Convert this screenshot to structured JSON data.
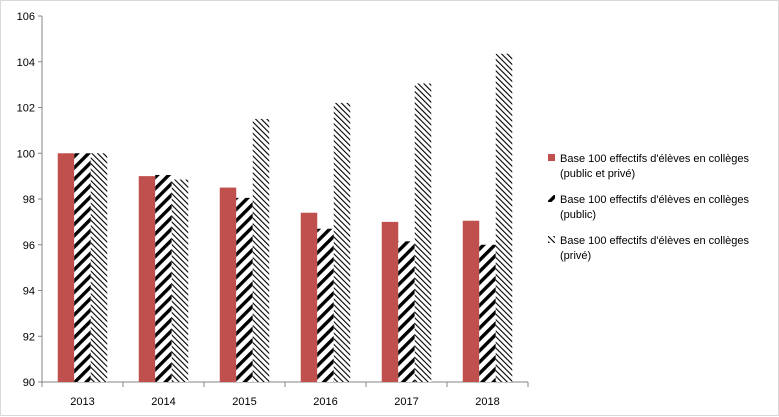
{
  "chart_data": {
    "type": "bar",
    "categories": [
      "2013",
      "2014",
      "2015",
      "2016",
      "2017",
      "2018"
    ],
    "series": [
      {
        "name": "Base 100 effectifs d'élèves en collèges (public et privé)",
        "name_lines": [
          "Base 100 effectifs d'élèves en collèges",
          "(public et privé)"
        ],
        "values": [
          100,
          99.0,
          98.5,
          97.4,
          97.0,
          97.05
        ],
        "fill": "solid",
        "color": "#c0504d"
      },
      {
        "name": "Base 100 effectifs d'élèves en collèges (public)",
        "name_lines": [
          "Base 100 effectifs d'élèves en collèges",
          "(public)"
        ],
        "values": [
          100,
          99.05,
          98.05,
          96.7,
          96.15,
          96.0
        ],
        "fill": "wide-downward-diagonal",
        "color": "#000000"
      },
      {
        "name": "Base 100 effectifs d'élèves en collèges (privé)",
        "name_lines": [
          "Base 100 effectifs d'élèves en collèges",
          "(privé)"
        ],
        "values": [
          100,
          98.85,
          101.5,
          102.2,
          103.05,
          104.35
        ],
        "fill": "light-upward-diagonal",
        "color": "#000000"
      }
    ],
    "ylim": [
      90,
      106
    ],
    "yticks": [
      "90",
      "92",
      "94",
      "96",
      "98",
      "100",
      "102",
      "104",
      "106"
    ],
    "title": "",
    "xlabel": "",
    "ylabel": "",
    "grid": false,
    "legend_position": "right"
  }
}
